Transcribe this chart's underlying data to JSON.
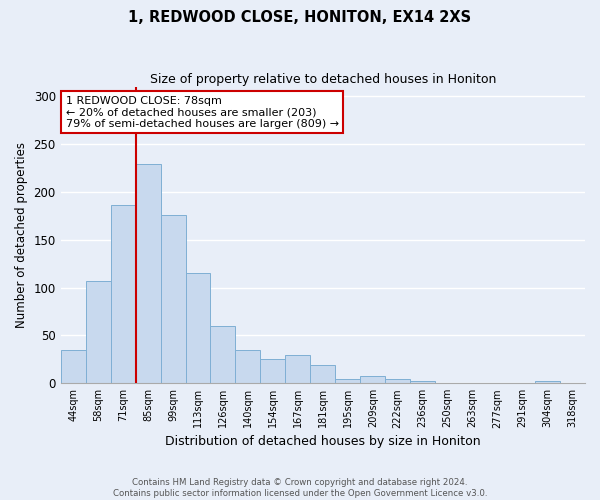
{
  "title": "1, REDWOOD CLOSE, HONITON, EX14 2XS",
  "subtitle": "Size of property relative to detached houses in Honiton",
  "xlabel": "Distribution of detached houses by size in Honiton",
  "ylabel": "Number of detached properties",
  "categories": [
    "44sqm",
    "58sqm",
    "71sqm",
    "85sqm",
    "99sqm",
    "113sqm",
    "126sqm",
    "140sqm",
    "154sqm",
    "167sqm",
    "181sqm",
    "195sqm",
    "209sqm",
    "222sqm",
    "236sqm",
    "250sqm",
    "263sqm",
    "277sqm",
    "291sqm",
    "304sqm",
    "318sqm"
  ],
  "values": [
    35,
    107,
    186,
    229,
    176,
    115,
    60,
    35,
    25,
    29,
    19,
    4,
    8,
    4,
    2,
    0,
    0,
    0,
    0,
    2,
    0
  ],
  "bar_color": "#c8d9ee",
  "bar_edge_color": "#7fafd4",
  "vline_color": "#cc0000",
  "vline_x": 2.5,
  "annotation_text": "1 REDWOOD CLOSE: 78sqm\n← 20% of detached houses are smaller (203)\n79% of semi-detached houses are larger (809) →",
  "annotation_box_color": "#ffffff",
  "annotation_box_edge": "#cc0000",
  "ylim": [
    0,
    310
  ],
  "yticks": [
    0,
    50,
    100,
    150,
    200,
    250,
    300
  ],
  "footer_line1": "Contains HM Land Registry data © Crown copyright and database right 2024.",
  "footer_line2": "Contains public sector information licensed under the Open Government Licence v3.0.",
  "bg_color": "#e8eef8",
  "grid_color": "#ffffff",
  "spine_color": "#aaaaaa"
}
